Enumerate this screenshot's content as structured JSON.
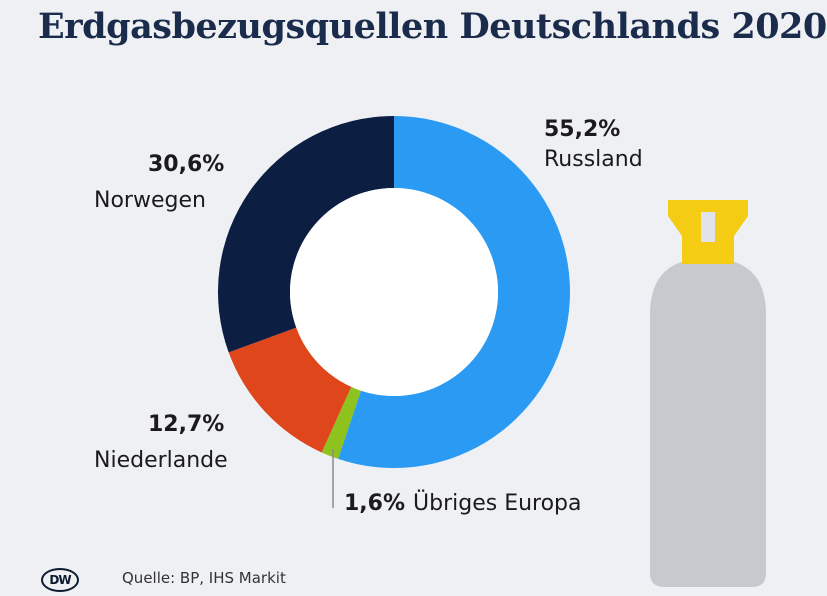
{
  "title": "Erdgasbezugsquellen Deutschlands 2020",
  "source": "Quelle: BP, IHS Markit",
  "logo_text": "DW",
  "chart_data": {
    "type": "pie",
    "title": "Erdgasbezugsquellen Deutschlands 2020",
    "donut": true,
    "slices": [
      {
        "label": "Russland",
        "value": 55.2,
        "value_label": "55,2%",
        "color": "#2b9af3"
      },
      {
        "label": "Übriges Europa",
        "value": 1.6,
        "value_label": "1,6%",
        "color": "#8dc21f"
      },
      {
        "label": "Niederlande",
        "value": 12.7,
        "value_label": "12,7%",
        "color": "#e0461c"
      },
      {
        "label": "Norwegen",
        "value": 30.6,
        "value_label": "30,6%",
        "color": "#0c1f43"
      }
    ]
  },
  "illustration": {
    "name": "gas-cylinder-icon",
    "body_color": "#c6cacf",
    "valve_color": "#f5cc14"
  }
}
